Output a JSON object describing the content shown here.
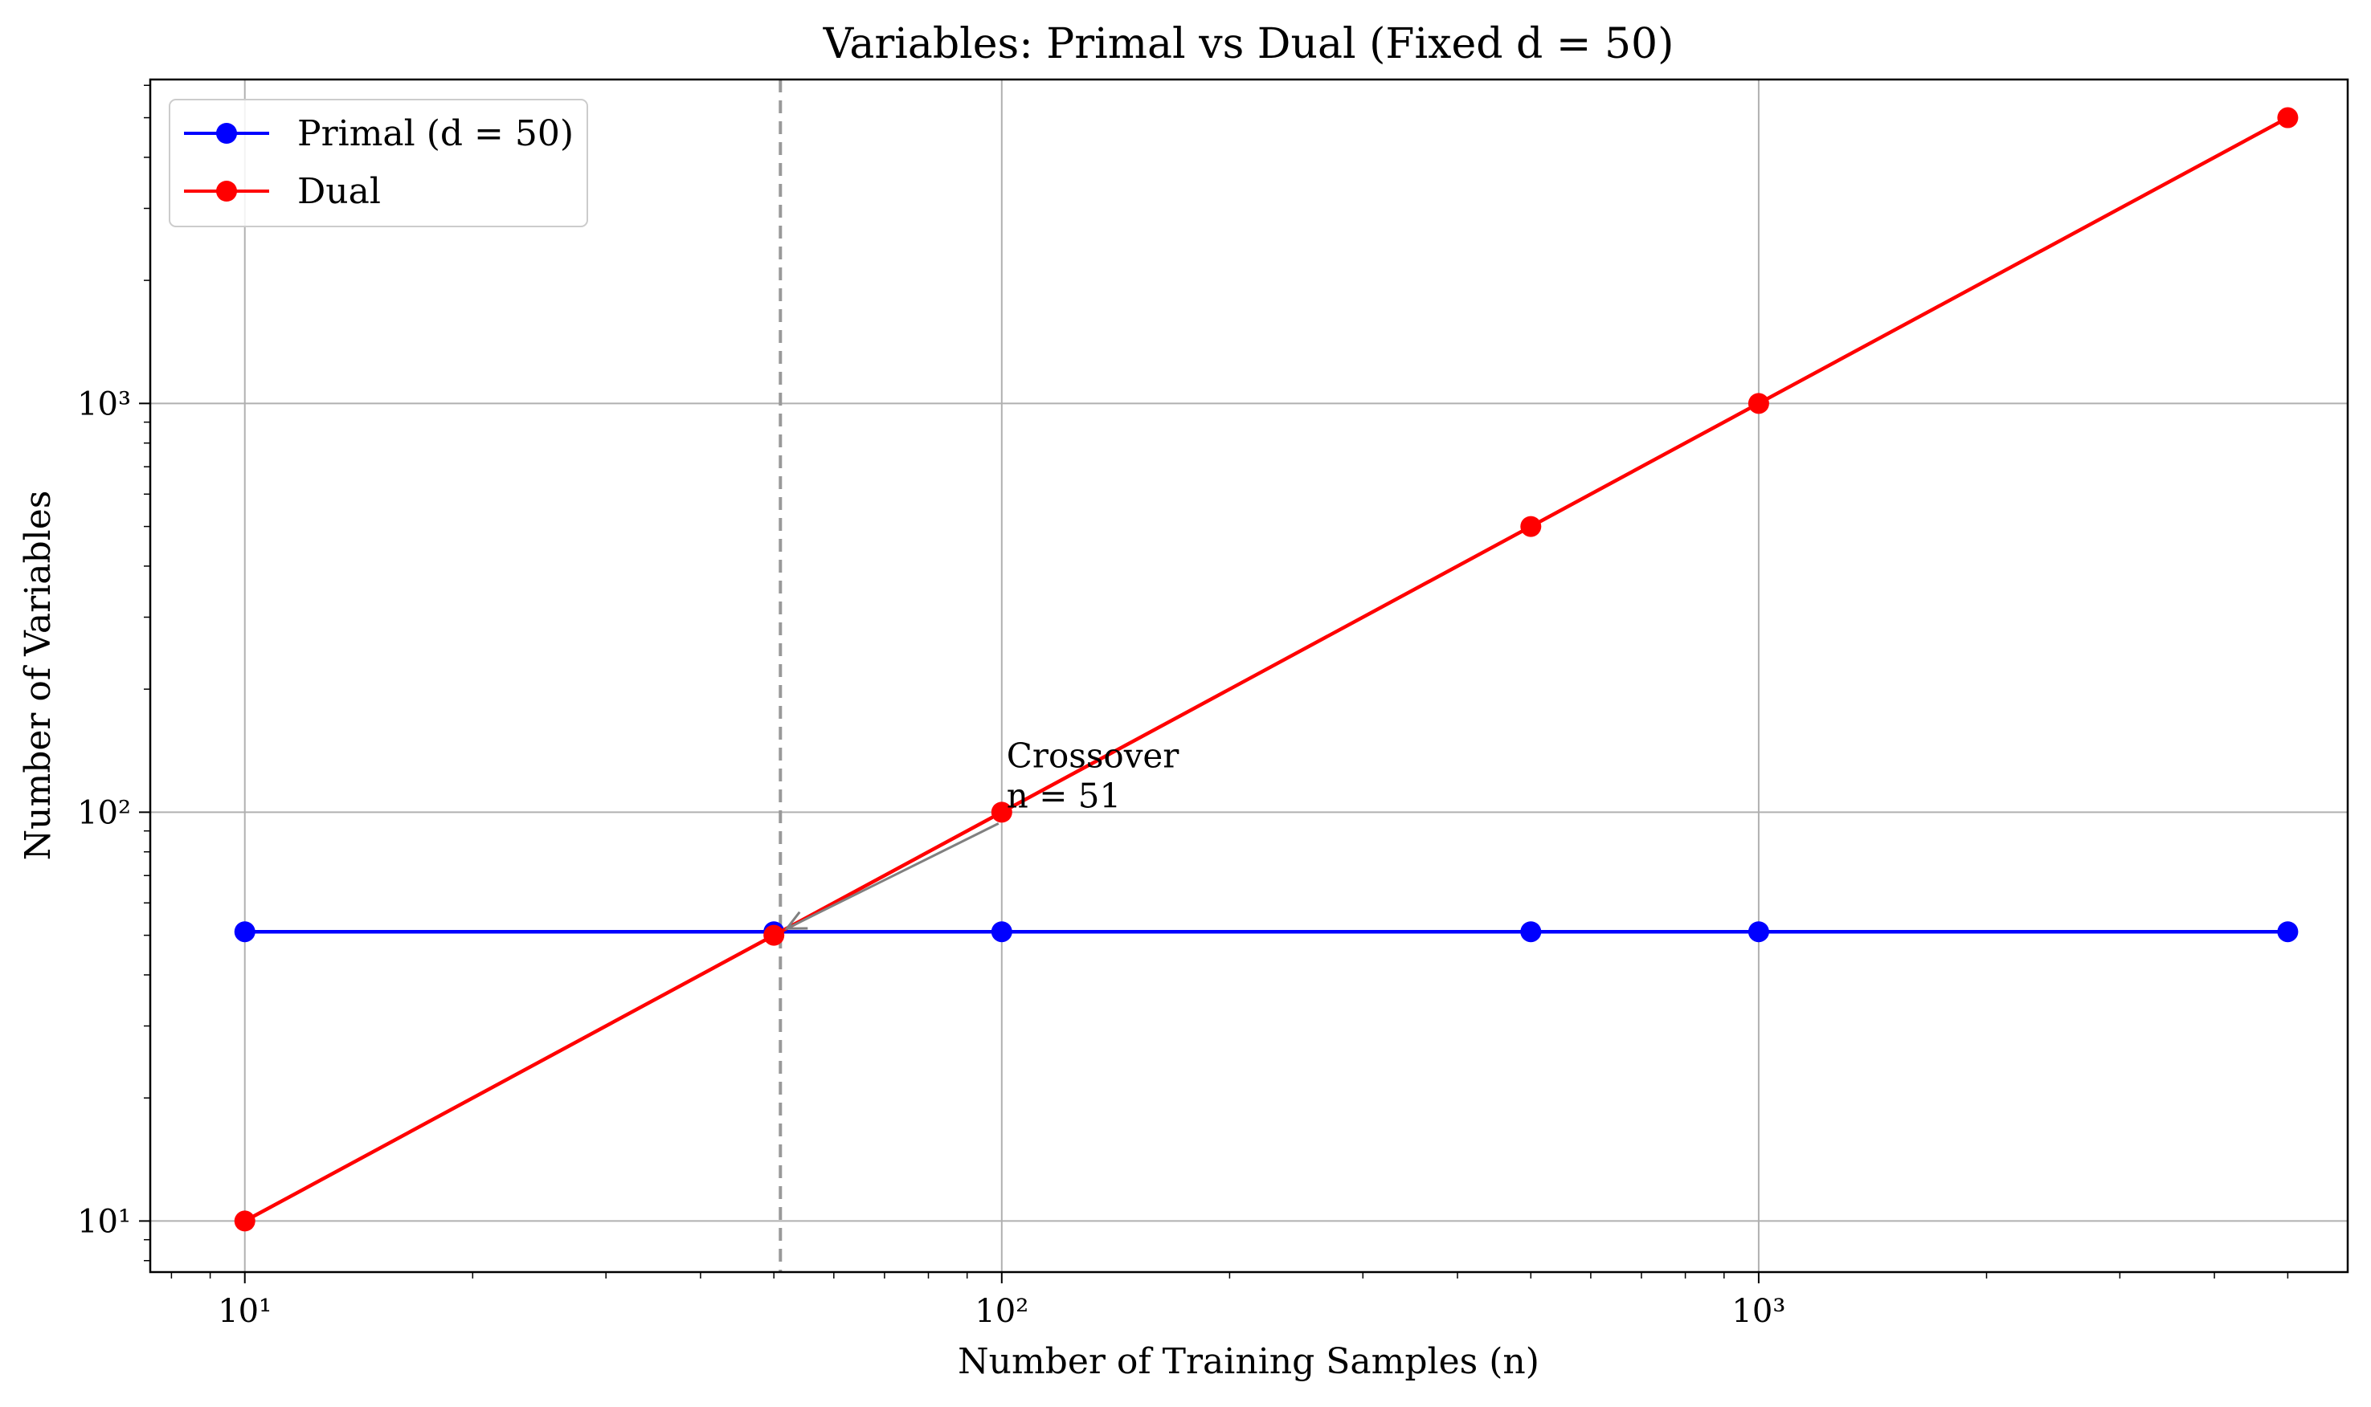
{
  "chart_data": {
    "type": "line",
    "title": "Variables: Primal vs Dual (Fixed d = 50)",
    "xlabel": "Number of Training Samples (n)",
    "ylabel": "Number of Variables",
    "x_scale": "log",
    "y_scale": "log",
    "xlim": [
      7.5,
      6000
    ],
    "ylim": [
      7.5,
      6200
    ],
    "x_ticks": [
      {
        "value": 10,
        "label": "10¹"
      },
      {
        "value": 100,
        "label": "10²"
      },
      {
        "value": 1000,
        "label": "10³"
      }
    ],
    "y_ticks": [
      {
        "value": 10,
        "label": "10¹"
      },
      {
        "value": 100,
        "label": "10²"
      },
      {
        "value": 1000,
        "label": "10³"
      }
    ],
    "grid": true,
    "legend_position": "top-left",
    "x": [
      10,
      50,
      100,
      500,
      1000,
      5000
    ],
    "series": [
      {
        "name": "Primal (d = 50)",
        "color": "#0000ff",
        "marker": "circle",
        "values": [
          51,
          51,
          51,
          51,
          51,
          51
        ]
      },
      {
        "name": "Dual",
        "color": "#ff0000",
        "marker": "circle",
        "values": [
          10,
          50,
          100,
          500,
          1000,
          5000
        ]
      }
    ],
    "vline": {
      "x": 51,
      "color": "#999999",
      "style": "dashed"
    },
    "annotation": {
      "lines": [
        "Crossover",
        "n = 51"
      ],
      "text_at": {
        "x": 100,
        "y": 100
      },
      "arrow_to": {
        "x": 51,
        "y": 51
      },
      "color": "#808080"
    }
  }
}
